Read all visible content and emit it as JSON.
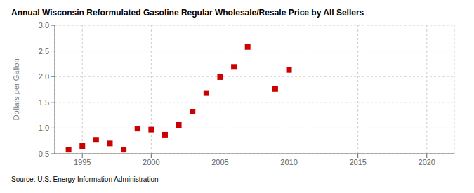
{
  "chart_data": {
    "type": "scatter",
    "title": "Annual Wisconsin Reformulated Gasoline Regular Wholesale/Resale Price by All Sellers",
    "ylabel": "Dollars per Gallon",
    "annotations": [
      "Source: U.S. Energy Information Administration"
    ],
    "x": [
      1994,
      1995,
      1996,
      1997,
      1998,
      1999,
      2000,
      2001,
      2002,
      2003,
      2004,
      2005,
      2006,
      2007,
      2009,
      2010
    ],
    "values": [
      0.58,
      0.65,
      0.77,
      0.7,
      0.58,
      0.99,
      0.97,
      0.87,
      1.06,
      1.32,
      1.68,
      1.99,
      2.19,
      2.58,
      1.76,
      2.13
    ],
    "color": "#cc0000",
    "marker": "square",
    "xlim": [
      1993,
      2022
    ],
    "ylim": [
      0.5,
      3.0
    ],
    "xticks": [
      1995,
      2000,
      2005,
      2010,
      2015,
      2020
    ],
    "yticks": [
      0.5,
      {
        "value": 1.0,
        "label": "1.0"
      },
      1.5,
      {
        "value": 2.0,
        "label": "2.0"
      },
      2.5,
      {
        "value": 3.0,
        "label": "3.0"
      }
    ],
    "grid": true
  }
}
